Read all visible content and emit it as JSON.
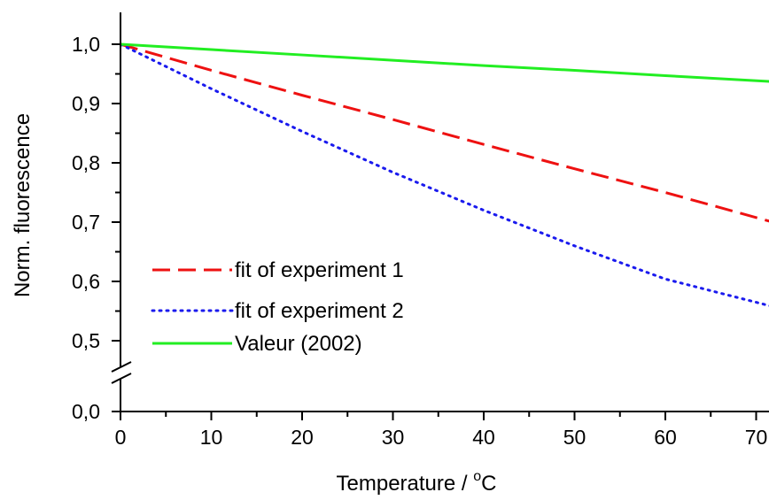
{
  "chart_data": {
    "type": "line",
    "title": "",
    "xlabel": "Temperature / ",
    "xlabel_unit_sup": "o",
    "xlabel_unit": "C",
    "ylabel": "Norm. fluorescence",
    "xlim": [
      0,
      73
    ],
    "ylim": [
      0.0,
      1.0
    ],
    "y_axis_break": true,
    "x_ticks": [
      0,
      10,
      20,
      30,
      40,
      50,
      60,
      70
    ],
    "x_tick_labels": [
      "0",
      "10",
      "20",
      "30",
      "40",
      "50",
      "60",
      "70"
    ],
    "y_ticks": [
      0.0,
      0.5,
      0.6,
      0.7,
      0.8,
      0.9,
      1.0
    ],
    "y_tick_labels": [
      "0,0",
      "0,5",
      "0,6",
      "0,7",
      "0,8",
      "0,9",
      "1,0"
    ],
    "grid": false,
    "legend_position": "bottom-left",
    "series": [
      {
        "name": "fit of experiment 1",
        "color": "#ee1111",
        "style": "dashed",
        "x": [
          0,
          10,
          20,
          30,
          40,
          50,
          60,
          73
        ],
        "y": [
          1.0,
          0.956,
          0.914,
          0.873,
          0.831,
          0.79,
          0.75,
          0.695
        ]
      },
      {
        "name": "fit of experiment 2",
        "color": "#1a1aee",
        "style": "dotted",
        "x": [
          0,
          10,
          20,
          30,
          40,
          50,
          60,
          73
        ],
        "y": [
          1.0,
          0.925,
          0.853,
          0.784,
          0.72,
          0.66,
          0.604,
          0.553
        ]
      },
      {
        "name": "Valeur (2002)",
        "color": "#22ee22",
        "style": "solid",
        "x": [
          0,
          10,
          20,
          30,
          40,
          50,
          60,
          73
        ],
        "y": [
          1.0,
          0.991,
          0.982,
          0.973,
          0.964,
          0.956,
          0.947,
          0.936
        ]
      }
    ]
  }
}
